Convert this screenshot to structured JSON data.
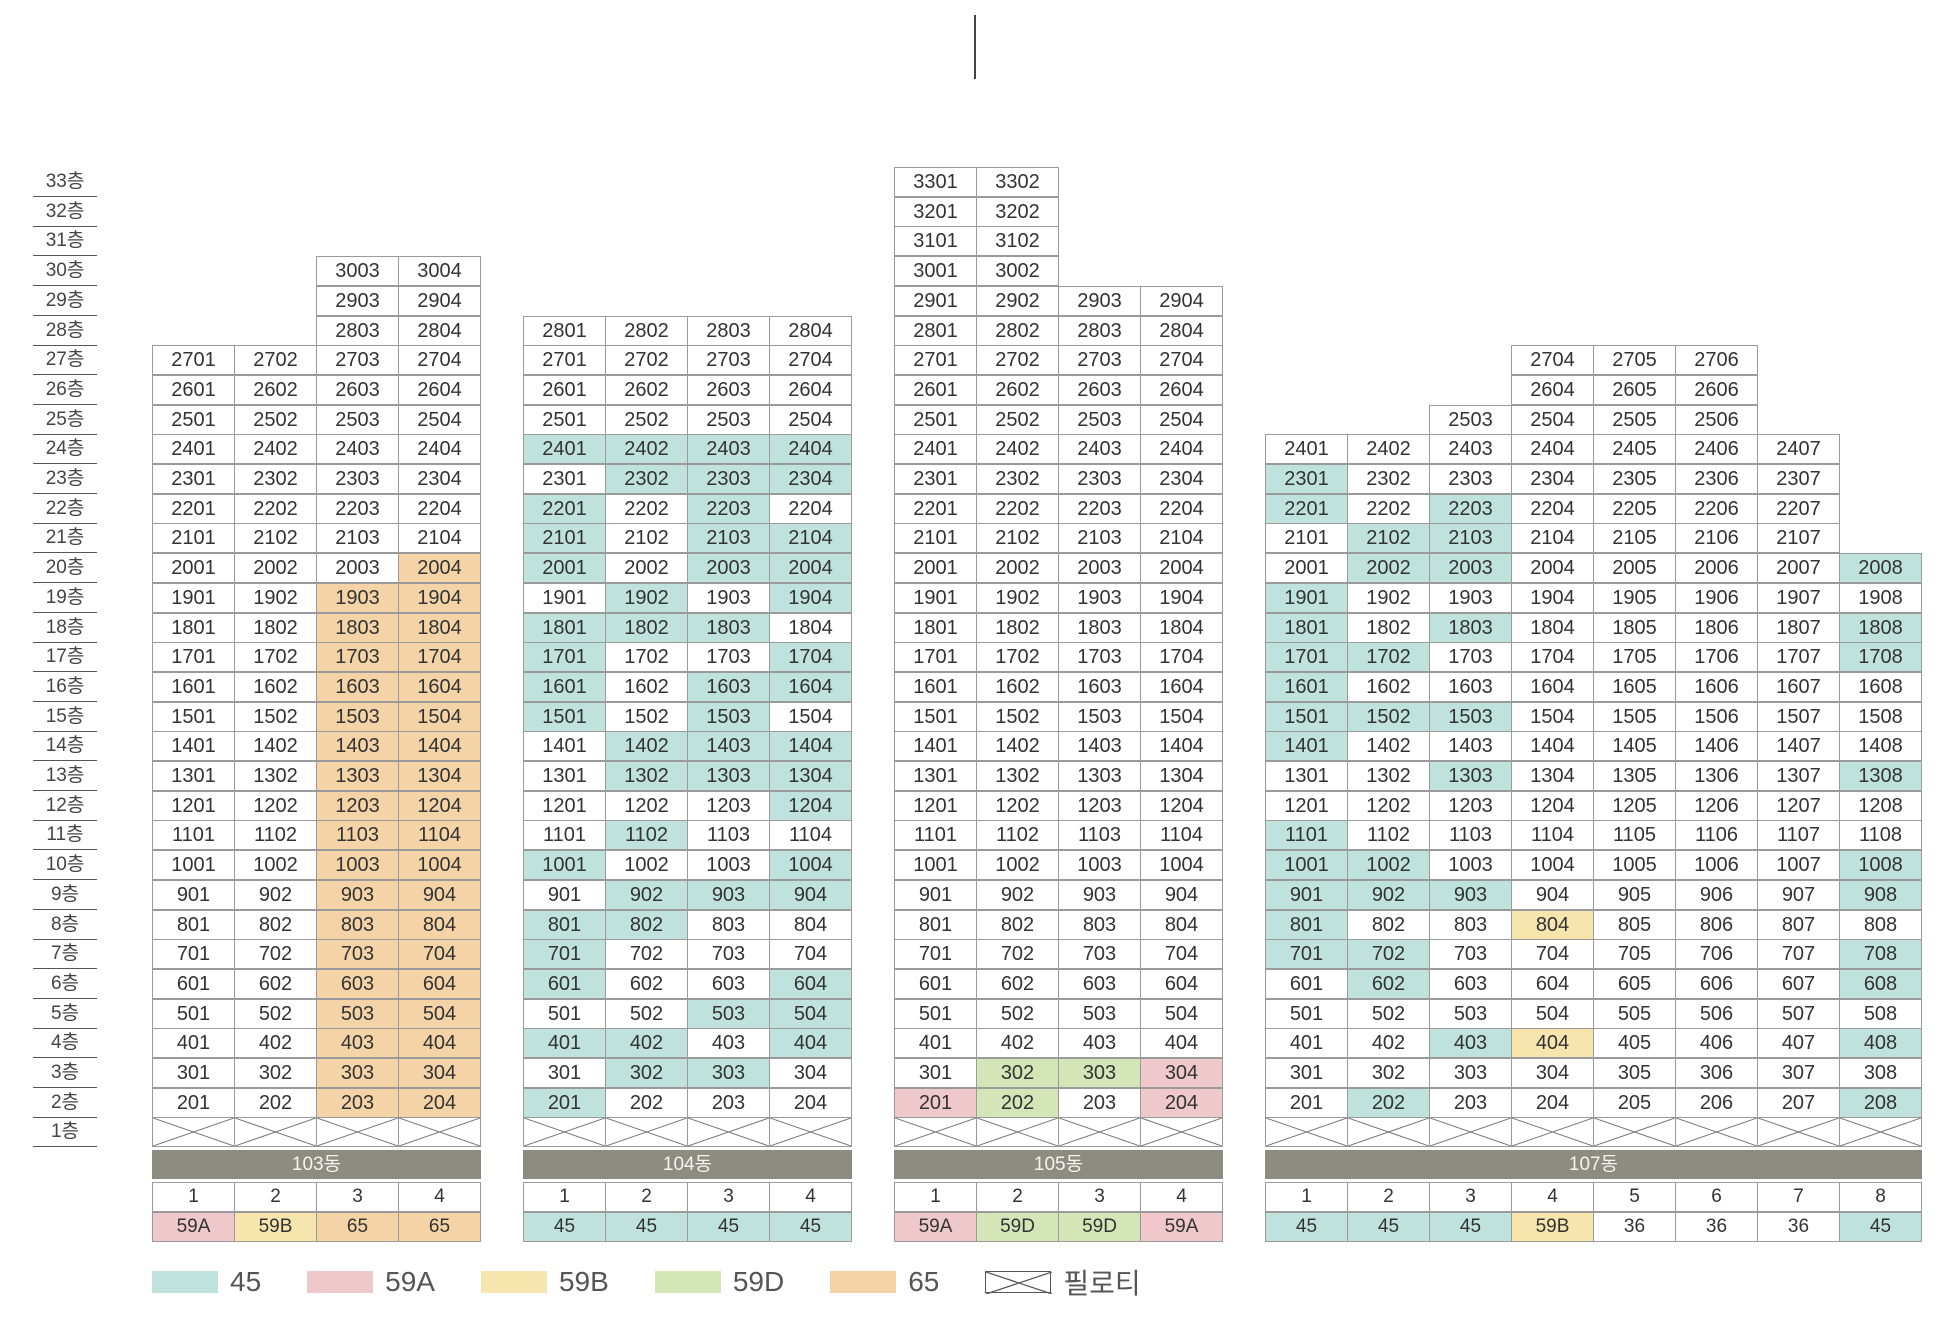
{
  "colors": {
    "45": "#bfe3dc",
    "59A": "#efc8cb",
    "59B": "#f6e5ad",
    "59D": "#d4e5b7",
    "65": "#f4d4a6",
    "none": "#ffffff",
    "header_bg": "#8e8c80"
  },
  "floors": [
    "33층",
    "32층",
    "31층",
    "30층",
    "29층",
    "28층",
    "27층",
    "26층",
    "25층",
    "24층",
    "23층",
    "22층",
    "21층",
    "20층",
    "19층",
    "18층",
    "17층",
    "16층",
    "15층",
    "14층",
    "13층",
    "12층",
    "11층",
    "10층",
    "9층",
    "8층",
    "7층",
    "6층",
    "5층",
    "4층",
    "3층",
    "2층",
    "1층"
  ],
  "buildings": [
    {
      "name": "103동",
      "lines": [
        "1",
        "2",
        "3",
        "4"
      ],
      "types": [
        "59A",
        "59B",
        "65",
        "65"
      ],
      "max_floors": [
        27,
        27,
        30,
        30
      ],
      "colored": {
        "2004": "65",
        "1903": "65",
        "1904": "65",
        "1803": "65",
        "1804": "65",
        "1703": "65",
        "1704": "65",
        "1603": "65",
        "1604": "65",
        "1503": "65",
        "1504": "65",
        "1403": "65",
        "1404": "65",
        "1303": "65",
        "1304": "65",
        "1203": "65",
        "1204": "65",
        "1103": "65",
        "1104": "65",
        "1003": "65",
        "1004": "65",
        "903": "65",
        "904": "65",
        "803": "65",
        "804": "65",
        "703": "65",
        "704": "65",
        "603": "65",
        "604": "65",
        "503": "65",
        "504": "65",
        "403": "65",
        "404": "65",
        "303": "65",
        "304": "65",
        "203": "65",
        "204": "65"
      }
    },
    {
      "name": "104동",
      "lines": [
        "1",
        "2",
        "3",
        "4"
      ],
      "types": [
        "45",
        "45",
        "45",
        "45"
      ],
      "max_floors": [
        28,
        28,
        28,
        28
      ],
      "colored": {
        "2401": "45",
        "2402": "45",
        "2403": "45",
        "2404": "45",
        "2302": "45",
        "2303": "45",
        "2304": "45",
        "2201": "45",
        "2203": "45",
        "2101": "45",
        "2103": "45",
        "2104": "45",
        "2001": "45",
        "2003": "45",
        "2004": "45",
        "1902": "45",
        "1904": "45",
        "1801": "45",
        "1802": "45",
        "1803": "45",
        "1701": "45",
        "1704": "45",
        "1601": "45",
        "1603": "45",
        "1604": "45",
        "1501": "45",
        "1503": "45",
        "1402": "45",
        "1403": "45",
        "1404": "45",
        "1302": "45",
        "1303": "45",
        "1304": "45",
        "1204": "45",
        "1102": "45",
        "1001": "45",
        "1004": "45",
        "902": "45",
        "903": "45",
        "904": "45",
        "801": "45",
        "802": "45",
        "701": "45",
        "601": "45",
        "604": "45",
        "503": "45",
        "504": "45",
        "401": "45",
        "402": "45",
        "404": "45",
        "302": "45",
        "303": "45",
        "201": "45"
      }
    },
    {
      "name": "105동",
      "lines": [
        "1",
        "2",
        "3",
        "4"
      ],
      "types": [
        "59A",
        "59D",
        "59D",
        "59A"
      ],
      "max_floors": [
        33,
        33,
        29,
        29
      ],
      "colored": {
        "302": "59D",
        "303": "59D",
        "304": "59A",
        "201": "59A",
        "202": "59D",
        "204": "59A"
      }
    },
    {
      "name": "107동",
      "lines": [
        "1",
        "2",
        "3",
        "4",
        "5",
        "6",
        "7",
        "8"
      ],
      "types": [
        "45",
        "45",
        "45",
        "59B",
        "36",
        "36",
        "36",
        "45"
      ],
      "max_floors": [
        24,
        24,
        25,
        27,
        27,
        27,
        24,
        20
      ],
      "colored": {
        "2301": "45",
        "2201": "45",
        "2203": "45",
        "2102": "45",
        "2103": "45",
        "2002": "45",
        "2003": "45",
        "2008": "45",
        "1901": "45",
        "1801": "45",
        "1803": "45",
        "1808": "45",
        "1701": "45",
        "1702": "45",
        "1708": "45",
        "1601": "45",
        "1501": "45",
        "1502": "45",
        "1503": "45",
        "1401": "45",
        "1303": "45",
        "1308": "45",
        "1101": "45",
        "1001": "45",
        "1002": "45",
        "1008": "45",
        "901": "45",
        "902": "45",
        "903": "45",
        "908": "45",
        "801": "45",
        "804": "59B",
        "701": "45",
        "702": "45",
        "708": "45",
        "602": "45",
        "608": "45",
        "403": "45",
        "404": "59B",
        "408": "45",
        "202": "45",
        "208": "45"
      }
    }
  ],
  "legend": {
    "items": [
      {
        "key": "45",
        "label": "45"
      },
      {
        "key": "59A",
        "label": "59A"
      },
      {
        "key": "59B",
        "label": "59B"
      },
      {
        "key": "59D",
        "label": "59D"
      },
      {
        "key": "65",
        "label": "65"
      }
    ],
    "piloti_label": "필로티"
  }
}
